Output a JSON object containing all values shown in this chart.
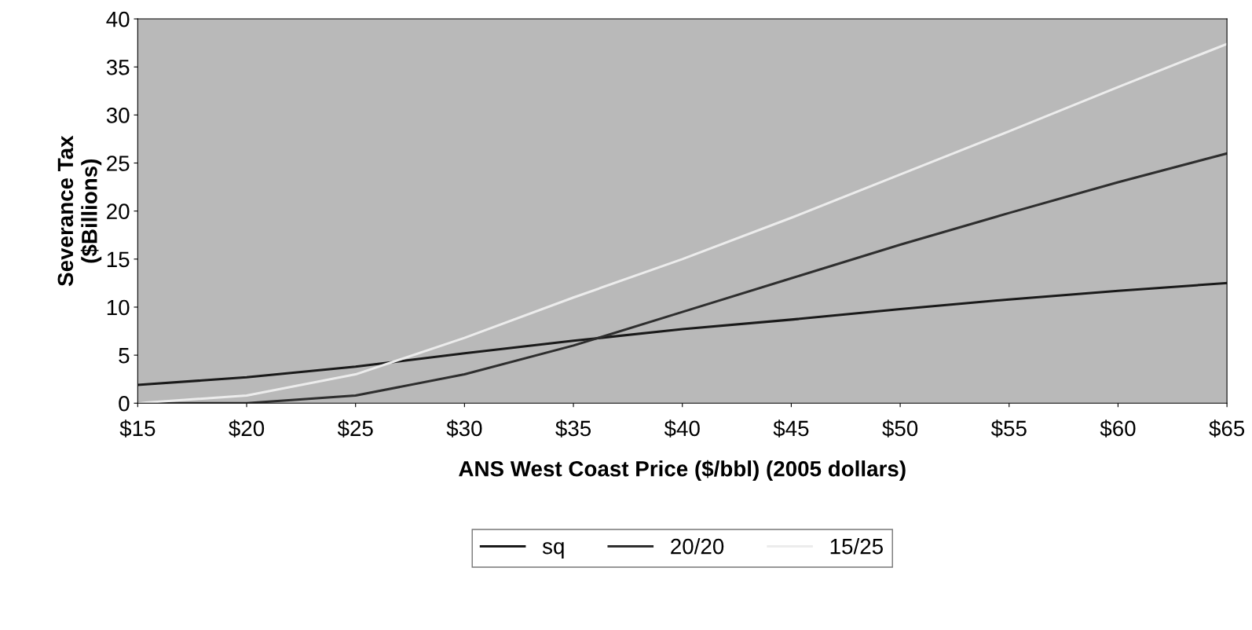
{
  "chart_data": {
    "type": "line",
    "xlabel": "ANS West Coast Price ($/bbl) (2005 dollars)",
    "ylabel": "Severance Tax\n($Billions)",
    "x": [
      15,
      20,
      25,
      30,
      35,
      40,
      45,
      50,
      55,
      60,
      65
    ],
    "series": [
      {
        "name": "sq",
        "color": "#1a1a1a",
        "values": [
          1.9,
          2.7,
          3.8,
          5.2,
          6.5,
          7.7,
          8.7,
          9.8,
          10.8,
          11.7,
          12.5
        ]
      },
      {
        "name": "20/20",
        "color": "#2e2e2e",
        "values": [
          0,
          0,
          0.8,
          3,
          6,
          9.5,
          13,
          16.5,
          19.8,
          23,
          26
        ]
      },
      {
        "name": "15/25",
        "color": "#ececec",
        "values": [
          0,
          0.8,
          3,
          6.8,
          11,
          15,
          19.3,
          23.8,
          28.3,
          32.9,
          37.4
        ]
      }
    ],
    "xlim": [
      15,
      65
    ],
    "xticks": [
      {
        "value": 15,
        "label": "$15"
      },
      {
        "value": 20,
        "label": "$20"
      },
      {
        "value": 25,
        "label": "$25"
      },
      {
        "value": 30,
        "label": "$30"
      },
      {
        "value": 35,
        "label": "$35"
      },
      {
        "value": 40,
        "label": "$40"
      },
      {
        "value": 45,
        "label": "$45"
      },
      {
        "value": 50,
        "label": "$50"
      },
      {
        "value": 55,
        "label": "$55"
      },
      {
        "value": 60,
        "label": "$60"
      },
      {
        "value": 65,
        "label": "$65"
      }
    ],
    "ylim": [
      0,
      40
    ],
    "yticks": [
      0,
      5,
      10,
      15,
      20,
      25,
      30,
      35,
      40
    ],
    "grid": false,
    "legend": "bottom",
    "marker": "none",
    "line_style": "solid"
  }
}
